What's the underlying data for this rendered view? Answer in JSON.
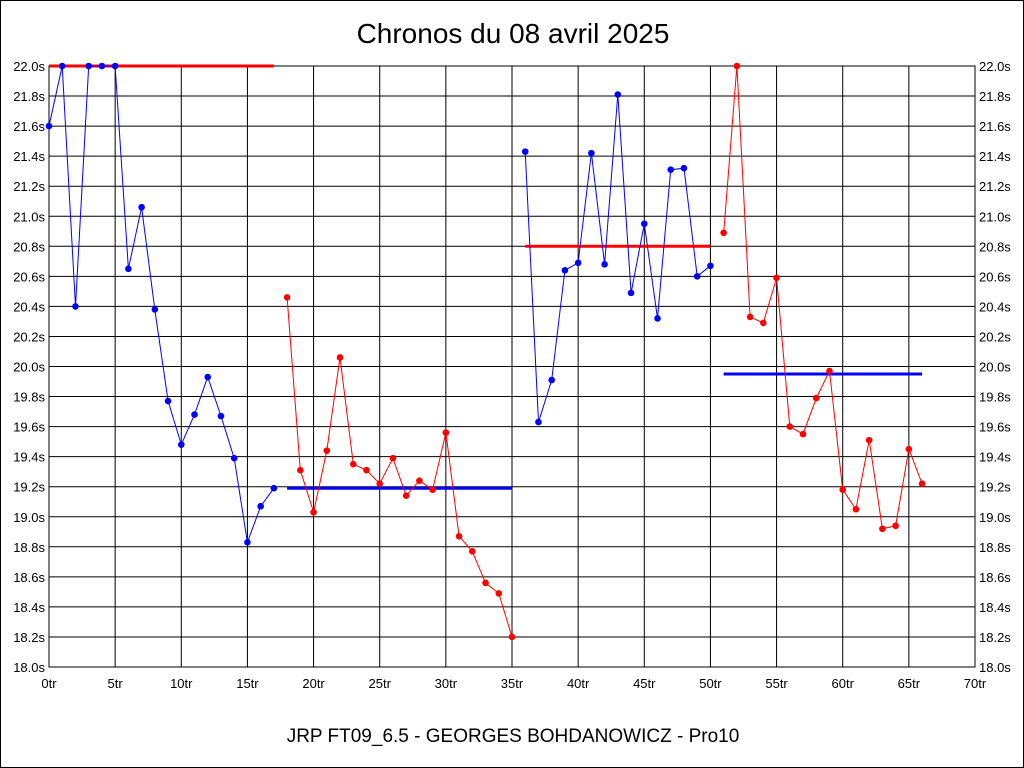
{
  "chart_data": {
    "type": "line",
    "title": "Chronos du 08 avril 2025",
    "footer": "JRP FT09_6.5 - GEORGES BOHDANOWICZ - Pro10",
    "xlim": [
      0,
      70
    ],
    "ylim": [
      18.0,
      22.0
    ],
    "x_tick_step": 5,
    "y_tick_step": 0.2,
    "x_tick_suffix": "tr",
    "y_tick_suffix": "s",
    "grid": true,
    "series": [
      {
        "color": "#0000ff",
        "points": [
          [
            0,
            21.6
          ],
          [
            1,
            22.0
          ],
          [
            2,
            20.4
          ],
          [
            3,
            22.0
          ],
          [
            4,
            22.0
          ],
          [
            5,
            22.0
          ],
          [
            6,
            20.65
          ],
          [
            7,
            21.06
          ],
          [
            8,
            20.38
          ],
          [
            9,
            19.77
          ],
          [
            10,
            19.48
          ],
          [
            11,
            19.68
          ],
          [
            12,
            19.93
          ],
          [
            13,
            19.67
          ],
          [
            14,
            19.39
          ],
          [
            15,
            18.83
          ],
          [
            16,
            19.07
          ],
          [
            17,
            19.19
          ]
        ]
      },
      {
        "color": "#ff0000",
        "points": [
          [
            18,
            20.46
          ],
          [
            19,
            19.31
          ],
          [
            20,
            19.03
          ],
          [
            21,
            19.44
          ],
          [
            22,
            20.06
          ],
          [
            23,
            19.35
          ],
          [
            24,
            19.31
          ],
          [
            25,
            19.22
          ],
          [
            26,
            19.39
          ],
          [
            27,
            19.14
          ],
          [
            28,
            19.24
          ],
          [
            29,
            19.18
          ],
          [
            30,
            19.56
          ],
          [
            31,
            18.87
          ],
          [
            32,
            18.77
          ],
          [
            33,
            18.56
          ],
          [
            34,
            18.49
          ],
          [
            35,
            18.2
          ]
        ]
      },
      {
        "color": "#0000ff",
        "points": [
          [
            36,
            21.43
          ],
          [
            37,
            19.63
          ],
          [
            38,
            19.91
          ],
          [
            39,
            20.64
          ],
          [
            40,
            20.69
          ],
          [
            41,
            21.42
          ],
          [
            42,
            20.68
          ],
          [
            43,
            21.81
          ],
          [
            44,
            20.49
          ],
          [
            45,
            20.95
          ],
          [
            46,
            20.32
          ],
          [
            47,
            21.31
          ],
          [
            48,
            21.32
          ],
          [
            49,
            20.6
          ],
          [
            50,
            20.67
          ]
        ]
      },
      {
        "color": "#ff0000",
        "points": [
          [
            51,
            20.89
          ],
          [
            52,
            22.0
          ],
          [
            53,
            20.33
          ],
          [
            54,
            20.29
          ],
          [
            55,
            20.59
          ],
          [
            56,
            19.6
          ],
          [
            57,
            19.55
          ],
          [
            58,
            19.79
          ],
          [
            59,
            19.97
          ],
          [
            60,
            19.18
          ],
          [
            61,
            19.05
          ],
          [
            62,
            19.51
          ],
          [
            63,
            18.92
          ],
          [
            64,
            18.94
          ],
          [
            65,
            19.45
          ],
          [
            66,
            19.22
          ]
        ]
      }
    ],
    "averages": [
      {
        "color": "#ff0000",
        "x": [
          0,
          17
        ],
        "y": 22.0
      },
      {
        "color": "#0000ff",
        "x": [
          18,
          35
        ],
        "y": 19.19
      },
      {
        "color": "#ff0000",
        "x": [
          36,
          50
        ],
        "y": 20.8
      },
      {
        "color": "#0000ff",
        "x": [
          51,
          66
        ],
        "y": 19.95
      }
    ]
  }
}
